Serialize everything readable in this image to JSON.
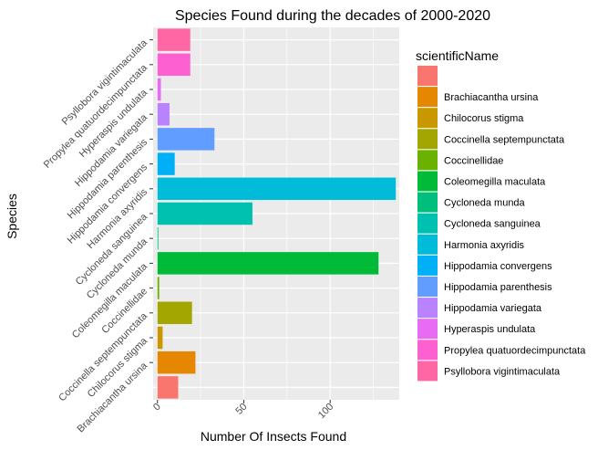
{
  "chart_data": {
    "type": "bar",
    "orientation": "horizontal",
    "title": "Species Found during the decades of 2000-2020",
    "xlabel": "Number Of Insects Found",
    "ylabel": "Species",
    "xlim": [
      -2.5,
      140
    ],
    "x_ticks": [
      0,
      50,
      100
    ],
    "grid": true,
    "legend_title": "scientificName",
    "legend_position": "right",
    "categories": [
      "",
      "Brachiacantha ursina",
      "Chilocorus stigma",
      "Coccinella septempunctata",
      "Coccinellidae",
      "Coleomegilla maculata",
      "Cycloneda munda",
      "Cycloneda sanguinea",
      "Harmonia axyridis",
      "Hippodamia convergens",
      "Hippodamia parenthesis",
      "Hippodamia variegata",
      "Hyperaspis undulata",
      "Propylea quatuordecimpunctata",
      "Psyllobora vigintimaculata"
    ],
    "values": [
      12,
      22,
      3,
      20,
      1,
      128,
      0.5,
      55,
      138,
      10,
      33,
      7,
      2,
      19,
      19
    ],
    "colors": [
      "#F8766D",
      "#E58700",
      "#C99800",
      "#A3A500",
      "#6BB100",
      "#00BA38",
      "#00BF7D",
      "#00C0AF",
      "#00BCD8",
      "#00B0F6",
      "#619CFF",
      "#B983FF",
      "#E76BF3",
      "#FD61D1",
      "#FF67A4"
    ],
    "y_tick_labels": [
      "Brachiacantha ursina",
      "Chilocorus stigma",
      "Coccinella septempunctata",
      "Coccinellidae",
      "Coleomegilla maculata",
      "Cycloneda munda",
      "Cycloneda sanguinea",
      "Harmonia axyridis",
      "Hippodamia convergens",
      "Hippodamia parenthesis",
      "Hippodamia variegata",
      "Hyperaspis undulata",
      "Propylea quatuordecimpunctata",
      "Psyllobora vigintimaculata"
    ],
    "panel_background": "#EBEBEB",
    "grid_color": "#FFFFFF"
  }
}
